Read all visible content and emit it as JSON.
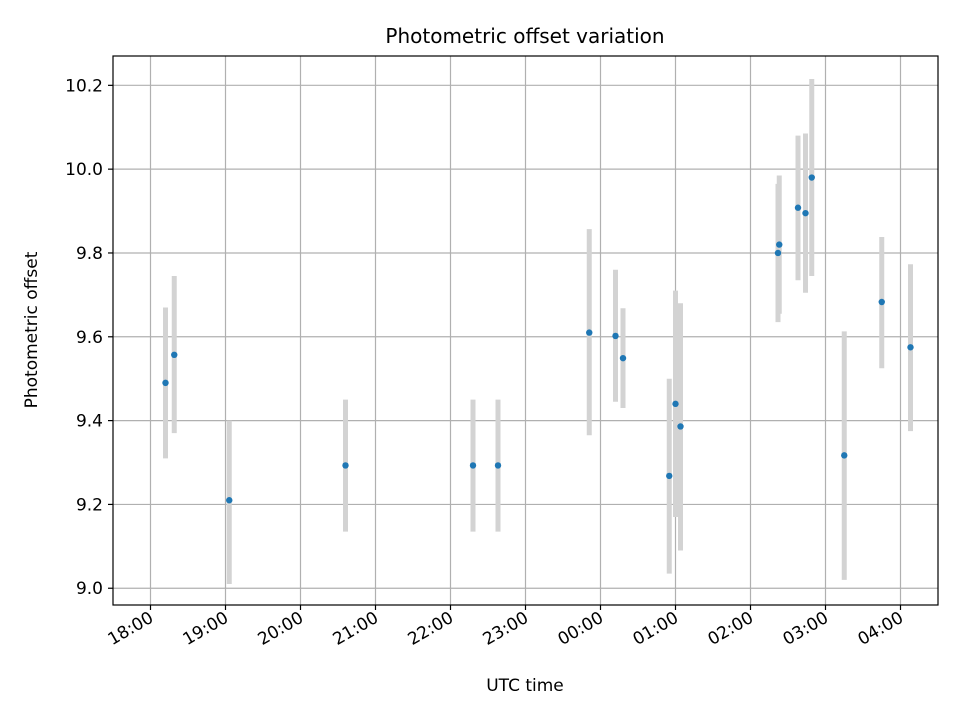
{
  "chart_data": {
    "type": "scatter",
    "title": "Photometric offset variation",
    "xlabel": "UTC time",
    "ylabel": "Photometric offset",
    "x_unit": "UTC",
    "xlim": [
      "18:00",
      "04:30"
    ],
    "ylim": [
      8.96,
      10.27
    ],
    "grid": true,
    "marker_color": "#1f77b4",
    "errorbar_color": "#d3d3d3",
    "x_ticks": [
      "18:00",
      "19:00",
      "20:00",
      "21:00",
      "22:00",
      "23:00",
      "00:00",
      "01:00",
      "02:00",
      "03:00",
      "04:00"
    ],
    "y_ticks": [
      "9.0",
      "9.2",
      "9.4",
      "9.6",
      "9.8",
      "10.0",
      "10.2"
    ],
    "points": [
      {
        "time": "18:12",
        "y": 9.49,
        "lo": 9.31,
        "hi": 9.67
      },
      {
        "time": "18:19",
        "y": 9.557,
        "lo": 9.37,
        "hi": 9.745
      },
      {
        "time": "19:03",
        "y": 9.21,
        "lo": 9.01,
        "hi": 9.4
      },
      {
        "time": "20:36",
        "y": 9.293,
        "lo": 9.135,
        "hi": 9.45
      },
      {
        "time": "22:18",
        "y": 9.293,
        "lo": 9.135,
        "hi": 9.45
      },
      {
        "time": "22:38",
        "y": 9.293,
        "lo": 9.135,
        "hi": 9.45
      },
      {
        "time": "23:51",
        "y": 9.61,
        "lo": 9.365,
        "hi": 9.857
      },
      {
        "time": "00:12",
        "y": 9.602,
        "lo": 9.445,
        "hi": 9.76
      },
      {
        "time": "00:18",
        "y": 9.549,
        "lo": 9.43,
        "hi": 9.668
      },
      {
        "time": "00:55",
        "y": 9.268,
        "lo": 9.035,
        "hi": 9.5
      },
      {
        "time": "01:00",
        "y": 9.44,
        "lo": 9.17,
        "hi": 9.71
      },
      {
        "time": "01:04",
        "y": 9.386,
        "lo": 9.09,
        "hi": 9.68
      },
      {
        "time": "02:22",
        "y": 9.8,
        "lo": 9.635,
        "hi": 9.965
      },
      {
        "time": "02:23",
        "y": 9.82,
        "lo": 9.655,
        "hi": 9.985
      },
      {
        "time": "02:38",
        "y": 9.908,
        "lo": 9.735,
        "hi": 10.08
      },
      {
        "time": "02:44",
        "y": 9.895,
        "lo": 9.705,
        "hi": 10.085
      },
      {
        "time": "02:49",
        "y": 9.98,
        "lo": 9.745,
        "hi": 10.215
      },
      {
        "time": "03:15",
        "y": 9.317,
        "lo": 9.02,
        "hi": 9.613
      },
      {
        "time": "03:45",
        "y": 9.683,
        "lo": 9.525,
        "hi": 9.838
      },
      {
        "time": "04:08",
        "y": 9.575,
        "lo": 9.375,
        "hi": 9.773
      }
    ]
  }
}
